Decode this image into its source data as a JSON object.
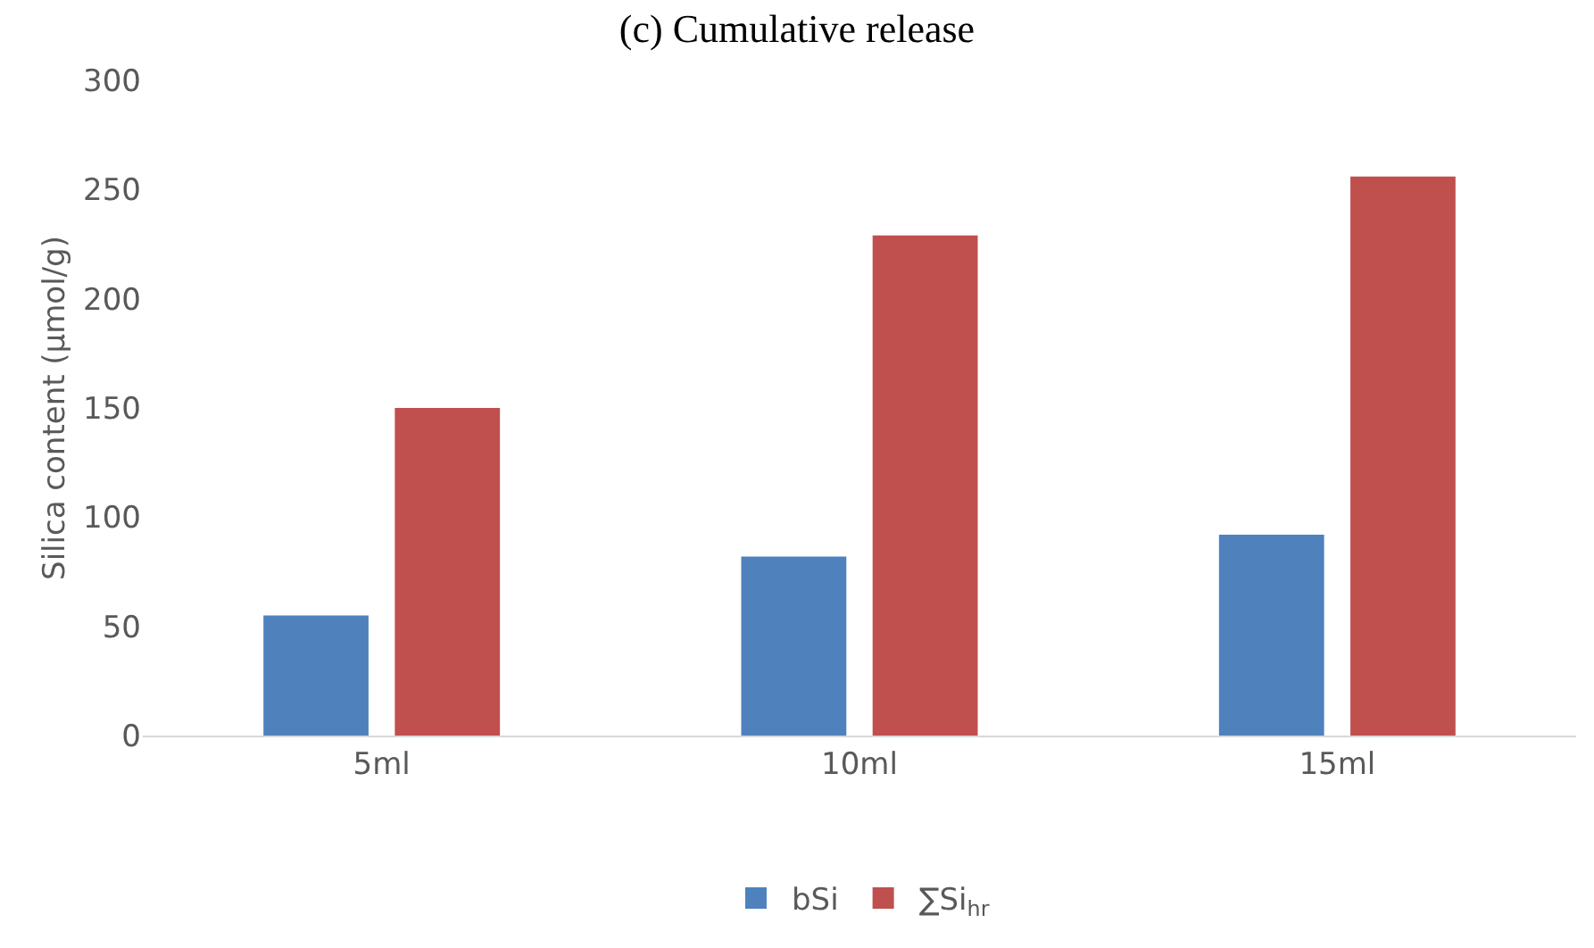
{
  "chart_data": {
    "type": "bar",
    "title": "(c) Cumulative release",
    "ylabel": "Silica content (µmol/g)",
    "categories": [
      "5ml",
      "10ml",
      "15ml"
    ],
    "series": [
      {
        "name": "bSi",
        "color": "#4f81bd",
        "values": [
          55,
          82,
          92
        ]
      },
      {
        "name": "∑Si$_{hr}$",
        "color": "#c0504d",
        "values": [
          150,
          229,
          256
        ]
      }
    ],
    "ylim": [
      0,
      300
    ],
    "yticks": [
      0,
      50,
      100,
      150,
      200,
      250,
      300
    ],
    "grid": false,
    "legend": "bottom"
  }
}
